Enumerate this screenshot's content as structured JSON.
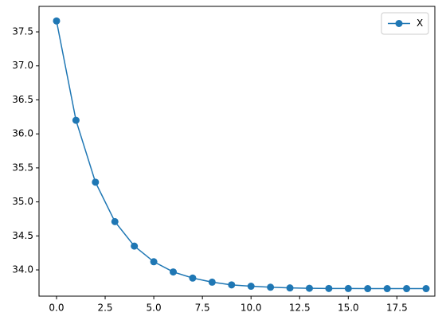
{
  "chart_data": {
    "type": "line",
    "x": [
      0,
      1,
      2,
      3,
      4,
      5,
      6,
      7,
      8,
      9,
      10,
      11,
      12,
      13,
      14,
      15,
      16,
      17,
      18,
      19
    ],
    "series": [
      {
        "name": "X",
        "color": "#1f77b4",
        "values": [
          37.66,
          36.2,
          35.29,
          34.71,
          34.35,
          34.12,
          33.97,
          33.88,
          33.82,
          33.78,
          33.76,
          33.745,
          33.735,
          33.73,
          33.727,
          33.726,
          33.725,
          33.725,
          33.725,
          33.725
        ]
      }
    ],
    "xlim": [
      -0.9,
      19.45
    ],
    "ylim": [
      33.614,
      37.875
    ],
    "xticks": [
      {
        "value": 0,
        "label": "0.0"
      },
      2.5,
      {
        "value": 5,
        "label": "5.0"
      },
      7.5,
      {
        "value": 10,
        "label": "10.0"
      },
      12.5,
      {
        "value": 15,
        "label": "15.0"
      },
      17.5
    ],
    "yticks": [
      {
        "value": 34,
        "label": "34.0"
      },
      34.5,
      {
        "value": 35,
        "label": "35.0"
      },
      35.5,
      {
        "value": 36,
        "label": "36.0"
      },
      36.5,
      {
        "value": 37,
        "label": "37.0"
      },
      37.5
    ],
    "legend": "upper right",
    "grid": false
  }
}
